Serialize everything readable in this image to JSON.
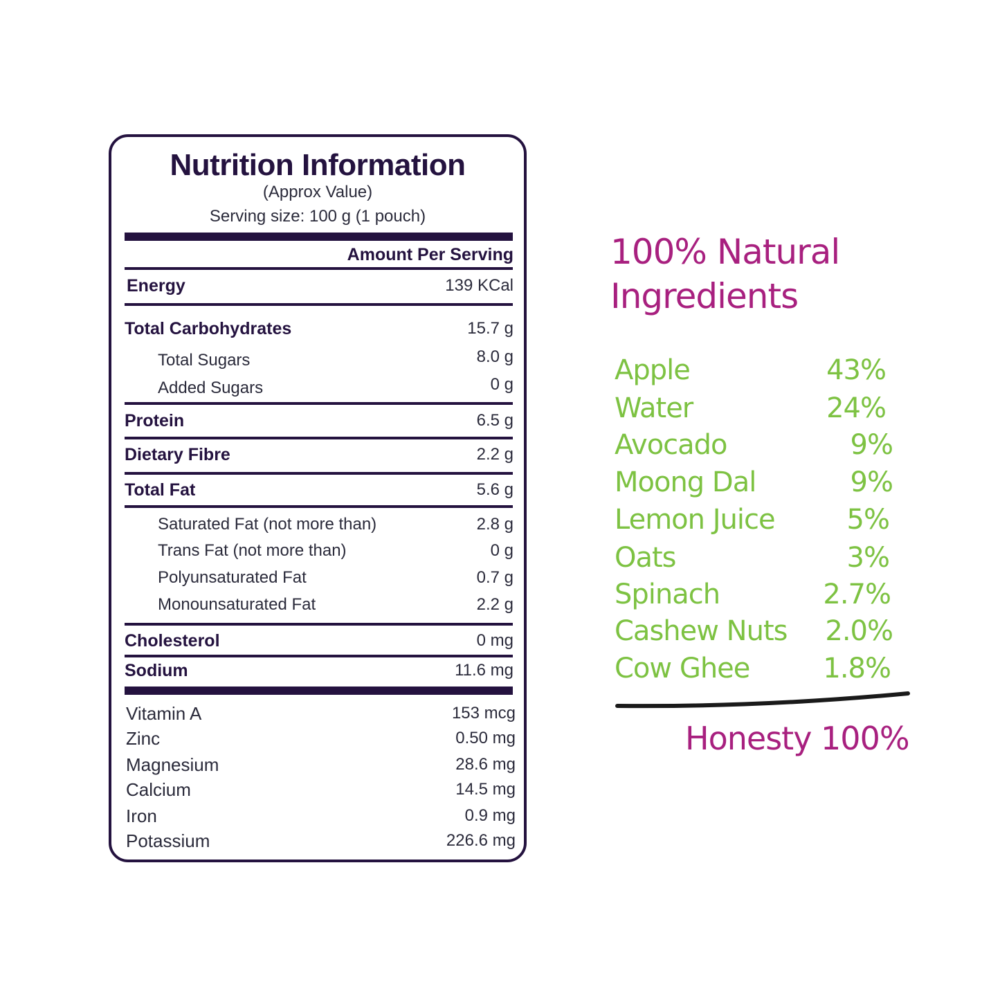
{
  "nutrition": {
    "title": "Nutrition Information",
    "subtitle": "(Approx Value)",
    "serving_size": "Serving size: 100 g (1 pouch)",
    "amount_header": "Amount Per Serving",
    "rows": [
      {
        "label": "Energy",
        "value": "139 KCal",
        "bold": true
      },
      {
        "label": "Total Carbohydrates",
        "value": "15.7 g",
        "bold": true
      },
      {
        "label": "Total Sugars",
        "value": "8.0 g",
        "bold": false
      },
      {
        "label": "Added Sugars",
        "value": "0 g",
        "bold": false
      },
      {
        "label": "Protein",
        "value": "6.5 g",
        "bold": true
      },
      {
        "label": "Dietary Fibre",
        "value": "2.2 g",
        "bold": true
      },
      {
        "label": "Total Fat",
        "value": "5.6 g",
        "bold": true
      },
      {
        "label": "Saturated Fat (not more than)",
        "value": "2.8 g",
        "bold": false
      },
      {
        "label": "Trans Fat (not more than)",
        "value": "0 g",
        "bold": false
      },
      {
        "label": "Polyunsaturated Fat",
        "value": "0.7 g",
        "bold": false
      },
      {
        "label": "Monounsaturated Fat",
        "value": "2.2 g",
        "bold": false
      },
      {
        "label": "Cholesterol",
        "value": "0 mg",
        "bold": true
      },
      {
        "label": "Sodium",
        "value": "11.6 mg",
        "bold": true
      }
    ],
    "minerals": [
      {
        "label": "Vitamin A",
        "value": "153 mcg"
      },
      {
        "label": "Zinc",
        "value": "0.50 mg"
      },
      {
        "label": "Magnesium",
        "value": "28.6 mg"
      },
      {
        "label": "Calcium",
        "value": "14.5 mg"
      },
      {
        "label": "Iron",
        "value": "0.9 mg"
      },
      {
        "label": "Potassium",
        "value": "226.6 mg"
      }
    ]
  },
  "ingredients": {
    "heading_line1": "100% Natural",
    "heading_line2": "Ingredients",
    "items": [
      {
        "name": "Apple",
        "percent": "43%"
      },
      {
        "name": "Water",
        "percent": "24%"
      },
      {
        "name": "Avocado",
        "percent": "9%"
      },
      {
        "name": "Moong Dal",
        "percent": "9%"
      },
      {
        "name": "Lemon Juice",
        "percent": "5%"
      },
      {
        "name": "Oats",
        "percent": "3%"
      },
      {
        "name": "Spinach",
        "percent": "2.7%"
      },
      {
        "name": "Cashew Nuts",
        "percent": "2.0%"
      },
      {
        "name": "Cow Ghee",
        "percent": "1.8%"
      }
    ],
    "footer": "Honesty 100%"
  },
  "colors": {
    "label_dark": "#24123f",
    "heading_magenta": "#a8207f",
    "ingredient_green": "#7dc242"
  }
}
